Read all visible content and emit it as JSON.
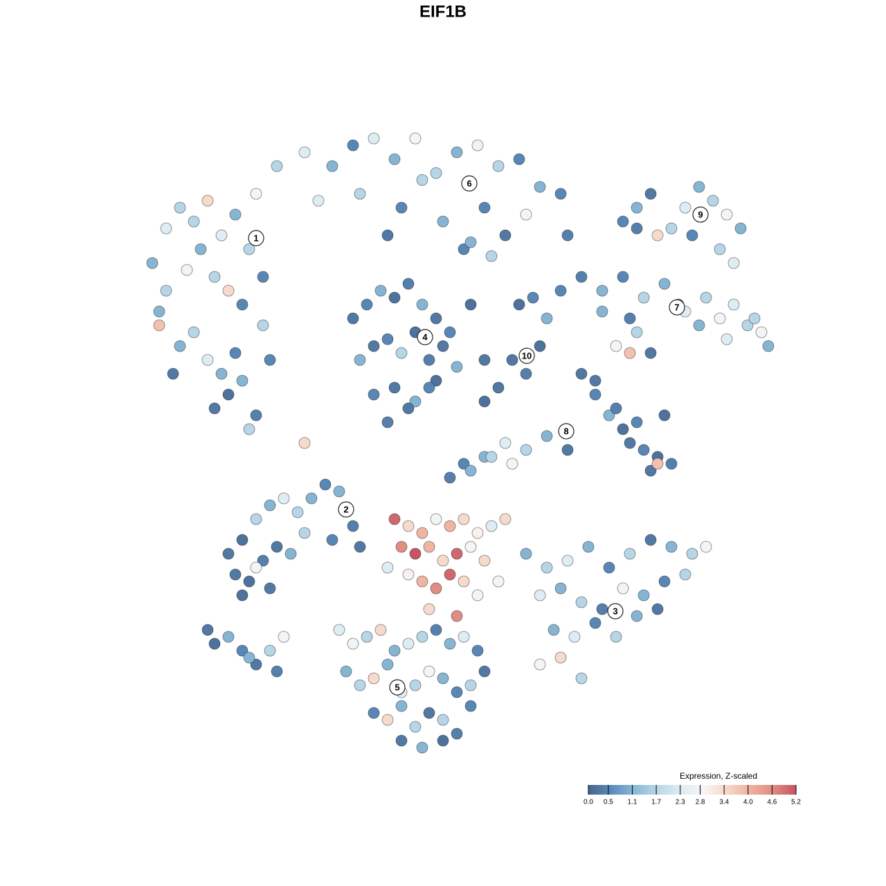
{
  "chart_data": {
    "type": "scatter",
    "title": "EIF1B",
    "xlim": [
      -45,
      50
    ],
    "ylim": [
      -47,
      47
    ],
    "series": [
      {
        "x": [
          -42,
          -40,
          -38,
          -36,
          -34,
          -32,
          -30,
          -28,
          -27,
          -26,
          -40,
          -37,
          -35,
          -33,
          -31,
          -29,
          -38,
          -36,
          -34,
          -32,
          -30,
          -33,
          -31,
          -29,
          -27,
          -41,
          -39,
          -26,
          -25,
          -28,
          -41
        ],
        "y": [
          26,
          31,
          34,
          32,
          35,
          30,
          33,
          28,
          36,
          24,
          22,
          25,
          28,
          24,
          22,
          20,
          14,
          16,
          12,
          10,
          13,
          5,
          7,
          9,
          4,
          19,
          10,
          17,
          12,
          2,
          17
        ],
        "values": [
          1.1,
          2.3,
          1.7,
          1.7,
          3.4,
          2.3,
          1.1,
          1.7,
          2.8,
          0.5,
          1.7,
          2.8,
          1.1,
          1.7,
          3.4,
          0.5,
          1.1,
          1.7,
          2.3,
          1.1,
          0.5,
          0.3,
          0.2,
          1.1,
          0.4,
          1.1,
          0.3,
          1.7,
          0.5,
          1.7,
          3.8
        ]
      },
      {
        "x": [
          -24,
          -20,
          -16,
          -13,
          -10,
          -7,
          -4,
          -1,
          2,
          5,
          8,
          11,
          14,
          17,
          -18,
          -12,
          -6,
          0,
          6,
          12,
          18,
          -8,
          3,
          -3
        ],
        "y": [
          40,
          42,
          40,
          43,
          44,
          41,
          44,
          39,
          42,
          43,
          40,
          41,
          37,
          36,
          35,
          36,
          34,
          32,
          34,
          33,
          30,
          30,
          28,
          38
        ],
        "values": [
          1.7,
          2.3,
          1.1,
          0.5,
          2.3,
          1.1,
          2.8,
          1.7,
          1.1,
          3.0,
          1.7,
          0.5,
          1.1,
          0.5,
          2.3,
          1.7,
          0.5,
          1.1,
          0.5,
          2.8,
          0.4,
          0.3,
          0.5,
          1.7
        ]
      },
      {
        "x": [
          -13,
          -11,
          -9,
          -7,
          -5,
          -3,
          -1,
          1,
          -12,
          -10,
          -8,
          -6,
          -4,
          -2,
          0,
          2,
          -10,
          -7,
          -4,
          -1,
          -8,
          -5,
          -2,
          4,
          6
        ],
        "y": [
          18,
          20,
          22,
          21,
          23,
          20,
          18,
          16,
          12,
          14,
          15,
          13,
          16,
          12,
          14,
          11,
          7,
          8,
          6,
          9,
          3,
          5,
          8,
          20,
          12
        ],
        "values": [
          0.3,
          0.5,
          1.1,
          0.2,
          0.4,
          1.1,
          0.3,
          0.5,
          1.1,
          0.3,
          0.5,
          1.7,
          0.2,
          0.4,
          0.3,
          1.1,
          0.5,
          0.3,
          1.1,
          0.2,
          0.4,
          0.3,
          0.5,
          0.2,
          0.3
        ]
      },
      {
        "x": [
          4,
          7,
          9,
          11,
          13,
          15,
          10,
          12,
          14,
          8,
          17,
          20,
          23,
          22,
          6
        ],
        "y": [
          29,
          27,
          30,
          20,
          21,
          18,
          12,
          10,
          14,
          8,
          22,
          24,
          19,
          9,
          6
        ],
        "values": [
          1.1,
          1.7,
          0.3,
          0.2,
          0.5,
          1.1,
          0.3,
          0.4,
          0.2,
          0.3,
          0.5,
          0.4,
          1.1,
          0.3,
          0.2
        ]
      },
      {
        "x": [
          26,
          28,
          30,
          33,
          35,
          37,
          39,
          41,
          43,
          40,
          36,
          31,
          42,
          28
        ],
        "y": [
          32,
          34,
          36,
          31,
          34,
          37,
          35,
          33,
          31,
          28,
          30,
          30,
          26,
          31
        ],
        "values": [
          0.5,
          1.1,
          0.3,
          1.7,
          2.3,
          1.1,
          1.7,
          2.8,
          1.1,
          1.7,
          0.5,
          3.4,
          2.3,
          0.4
        ]
      },
      {
        "x": [
          23,
          26,
          29,
          32,
          35,
          38,
          40,
          42,
          44,
          46,
          47,
          34,
          37,
          28,
          30,
          41,
          45,
          27,
          25,
          27
        ],
        "y": [
          22,
          24,
          21,
          23,
          19,
          21,
          18,
          20,
          17,
          16,
          14,
          20,
          17,
          16,
          13,
          15,
          18,
          18,
          14,
          13
        ],
        "values": [
          1.1,
          0.5,
          1.7,
          1.1,
          2.3,
          1.7,
          2.8,
          2.3,
          1.7,
          2.8,
          1.1,
          0.3,
          1.1,
          1.7,
          0.3,
          2.3,
          1.7,
          0.4,
          2.8,
          3.8
        ]
      },
      {
        "x": [
          20,
          22,
          24,
          26,
          25,
          27,
          29,
          31,
          33,
          30,
          28,
          32,
          15,
          12,
          9,
          6,
          3,
          18,
          10,
          7,
          4,
          1,
          31,
          -20
        ],
        "y": [
          10,
          7,
          4,
          2,
          5,
          0,
          -1,
          -2,
          -3,
          -4,
          3,
          4,
          1,
          -1,
          0,
          -2,
          -3,
          -1,
          -3,
          -2,
          -4,
          -5,
          -3,
          0
        ],
        "values": [
          0.3,
          0.5,
          1.1,
          0.2,
          0.4,
          0.3,
          0.5,
          0.2,
          0.4,
          0.3,
          0.5,
          0.2,
          1.1,
          1.7,
          2.3,
          1.1,
          0.5,
          0.3,
          2.8,
          1.7,
          1.1,
          0.4,
          3.8,
          3.4
        ]
      },
      {
        "x": [
          -31,
          -29,
          -27,
          -25,
          -23,
          -21,
          -19,
          -17,
          -15,
          -13,
          -30,
          -28,
          -26,
          -24,
          -20,
          -16,
          -12,
          -29,
          -27,
          -25,
          -22
        ],
        "y": [
          -16,
          -14,
          -11,
          -9,
          -8,
          -10,
          -8,
          -6,
          -7,
          -12,
          -19,
          -20,
          -17,
          -15,
          -13,
          -14,
          -15,
          -22,
          -18,
          -21,
          -16
        ],
        "values": [
          0.3,
          0.2,
          1.7,
          1.1,
          2.3,
          1.7,
          1.1,
          0.5,
          1.1,
          0.4,
          0.3,
          0.2,
          0.4,
          0.3,
          1.7,
          0.5,
          0.3,
          0.2,
          2.8,
          0.3,
          1.1
        ]
      },
      {
        "x": [
          -34,
          -33,
          -31,
          -29,
          -27,
          -25,
          -24,
          -28,
          -23
        ],
        "y": [
          -27,
          -29,
          -28,
          -30,
          -32,
          -30,
          -33,
          -31,
          -28
        ],
        "values": [
          0.3,
          0.2,
          1.1,
          0.5,
          0.3,
          1.7,
          0.4,
          1.1,
          2.8
        ]
      },
      {
        "x": [
          12,
          15,
          18,
          21,
          24,
          27,
          30,
          33,
          36,
          38,
          14,
          17,
          20,
          23,
          26,
          29,
          32,
          35,
          16,
          19,
          22,
          25,
          28,
          31,
          14,
          17,
          20
        ],
        "y": [
          -16,
          -18,
          -17,
          -15,
          -18,
          -16,
          -14,
          -15,
          -16,
          -15,
          -22,
          -21,
          -23,
          -24,
          -21,
          -22,
          -20,
          -19,
          -27,
          -28,
          -26,
          -28,
          -25,
          -24,
          -32,
          -31,
          -34
        ],
        "values": [
          1.1,
          1.7,
          2.3,
          1.1,
          0.5,
          1.7,
          0.3,
          1.1,
          1.7,
          2.8,
          2.3,
          1.1,
          1.7,
          0.4,
          2.8,
          1.1,
          0.5,
          1.7,
          1.1,
          2.3,
          0.5,
          1.7,
          1.1,
          0.3,
          2.8,
          3.4,
          1.7
        ]
      },
      {
        "x": [
          -15,
          -13,
          -11,
          -9,
          -7,
          -5,
          -3,
          -1,
          1,
          3,
          5,
          -14,
          -12,
          -10,
          -8,
          -6,
          -4,
          -2,
          0,
          2,
          4,
          6,
          -10,
          -8,
          -6,
          -4,
          -2,
          0,
          2,
          4,
          -6,
          -3,
          0
        ],
        "y": [
          -27,
          -29,
          -28,
          -27,
          -30,
          -29,
          -28,
          -27,
          -29,
          -28,
          -30,
          -33,
          -35,
          -34,
          -32,
          -36,
          -35,
          -33,
          -34,
          -36,
          -35,
          -33,
          -39,
          -40,
          -38,
          -41,
          -39,
          -40,
          -42,
          -38,
          -43,
          -44,
          -43
        ],
        "values": [
          2.3,
          2.8,
          1.7,
          3.4,
          1.1,
          2.3,
          1.7,
          0.4,
          1.1,
          2.3,
          0.5,
          1.1,
          1.7,
          3.4,
          1.1,
          2.3,
          1.7,
          2.8,
          1.1,
          0.5,
          1.7,
          0.3,
          0.5,
          3.4,
          1.1,
          1.7,
          0.3,
          1.7,
          0.4,
          0.5,
          0.3,
          1.1,
          0.2
        ]
      },
      {
        "x": [
          -7,
          -5,
          -3,
          -1,
          1,
          3,
          5,
          7,
          9,
          -6,
          -4,
          -2,
          0,
          2,
          4,
          6,
          -5,
          -3,
          -1,
          1,
          3,
          5,
          -2,
          2,
          -8,
          8
        ],
        "y": [
          -11,
          -12,
          -13,
          -11,
          -12,
          -11,
          -13,
          -12,
          -11,
          -15,
          -16,
          -15,
          -17,
          -16,
          -15,
          -17,
          -19,
          -20,
          -21,
          -19,
          -20,
          -22,
          -24,
          -25,
          -18,
          -20
        ],
        "values": [
          5.0,
          3.4,
          4.0,
          2.8,
          4.0,
          3.4,
          3.0,
          2.3,
          3.4,
          4.6,
          5.2,
          4.0,
          3.4,
          5.0,
          2.8,
          3.4,
          3.0,
          4.0,
          4.6,
          5.0,
          3.4,
          2.8,
          3.4,
          4.6,
          2.3,
          2.8
        ]
      }
    ],
    "clusters": [
      {
        "label": "1",
        "x": -27,
        "y": 29.6
      },
      {
        "label": "2",
        "x": -14,
        "y": -9.6
      },
      {
        "label": "3",
        "x": 24.9,
        "y": -24.3
      },
      {
        "label": "4",
        "x": -2.6,
        "y": 15.3
      },
      {
        "label": "5",
        "x": -6.6,
        "y": -35.3
      },
      {
        "label": "6",
        "x": 3.8,
        "y": 37.5
      },
      {
        "label": "7",
        "x": 33.8,
        "y": 19.6
      },
      {
        "label": "8",
        "x": 17.8,
        "y": 1.7
      },
      {
        "label": "9",
        "x": 37.2,
        "y": 33
      },
      {
        "label": "10",
        "x": 12.1,
        "y": 12.6
      }
    ],
    "colorbar": {
      "title": "Expression, Z-scaled",
      "lim": [
        0,
        5.2
      ],
      "ticks": [
        {
          "value": 0,
          "label": "0.0"
        },
        0.5,
        1.1,
        1.7,
        2.3,
        2.8,
        3.4,
        {
          "value": 4,
          "label": "4.0"
        },
        4.6,
        5.2
      ],
      "colors": [
        "#46648a",
        "#5b8cbd",
        "#8bb9d6",
        "#b9d7e7",
        "#dfecf3",
        "#f7f6f5",
        "#f6d7c7",
        "#efb29f",
        "#df8b82",
        "#c65463"
      ]
    }
  }
}
